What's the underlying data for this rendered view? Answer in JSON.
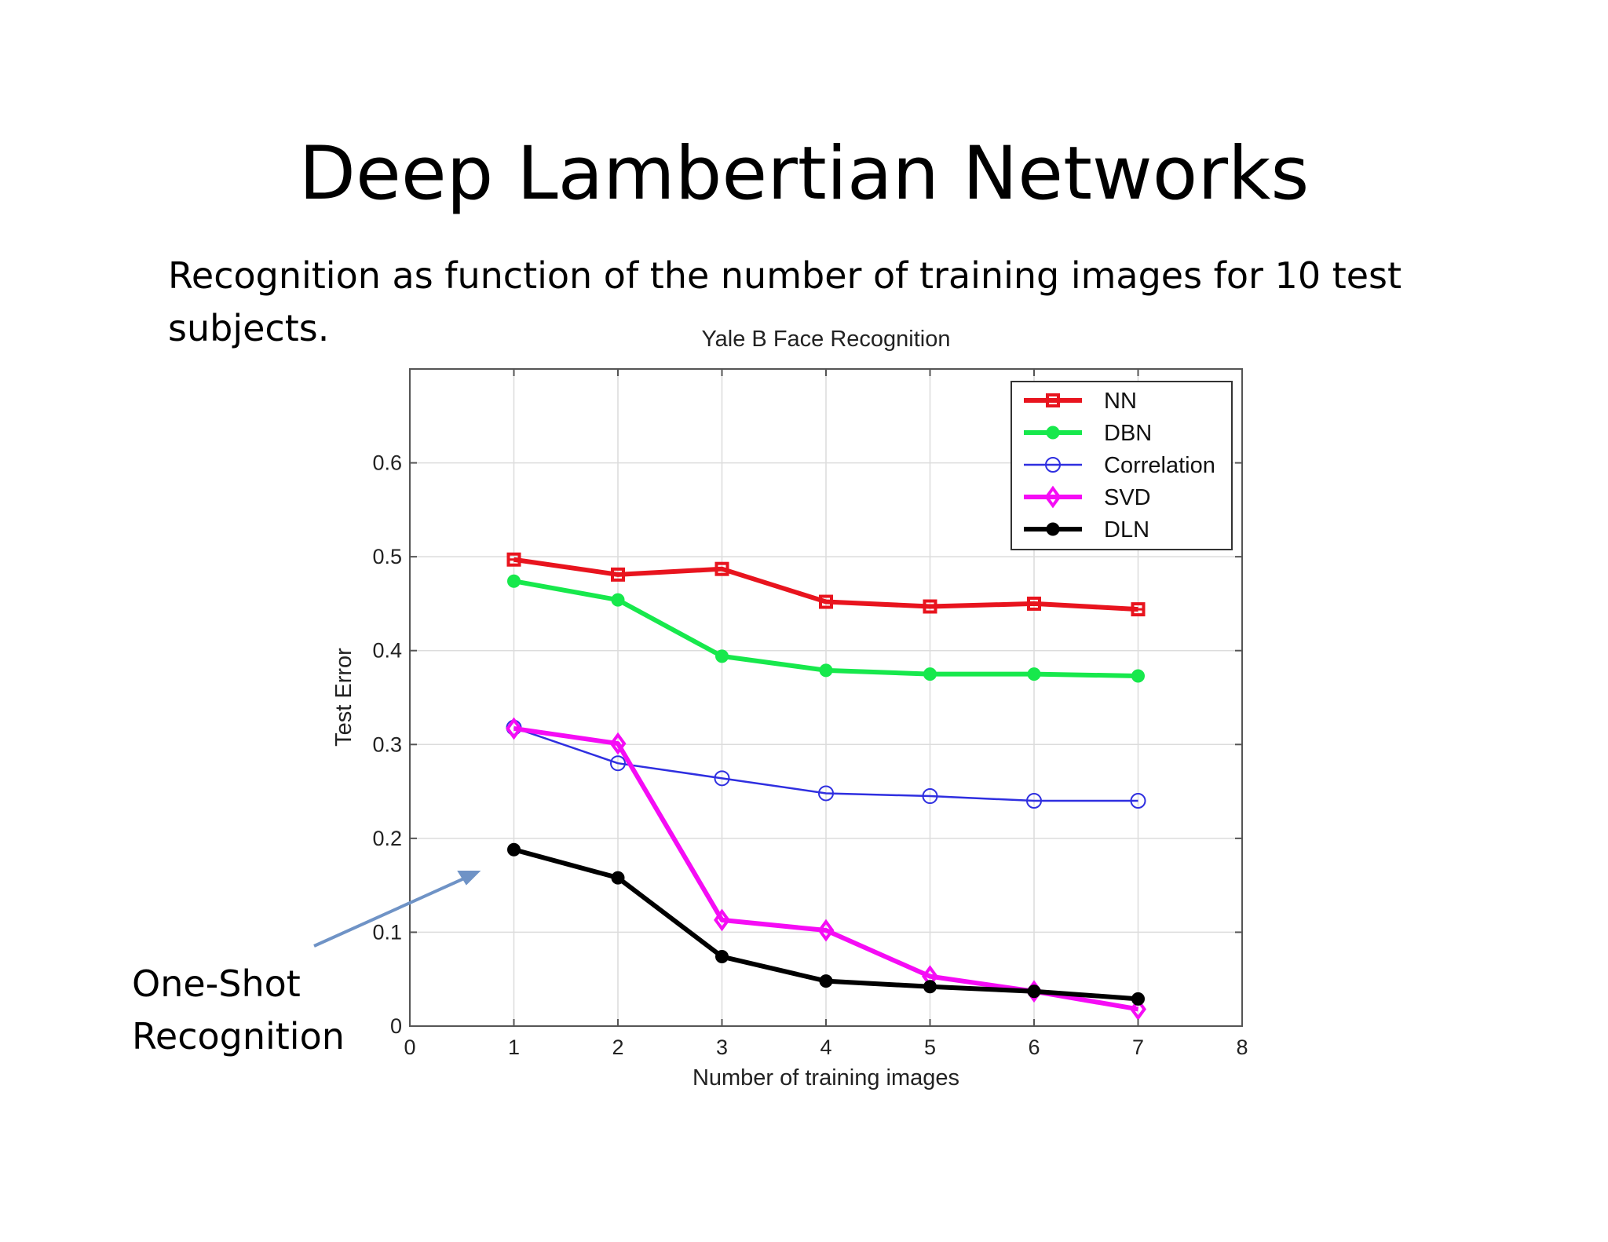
{
  "slide": {
    "title": "Deep Lambertian Networks",
    "subtitle": "Recognition as function of the number of training images for 10 test subjects.",
    "annotation_line1": "One-Shot",
    "annotation_line2": "Recognition",
    "arrow_color": "#6f93c6"
  },
  "chart_data": {
    "type": "line",
    "title": "Yale B Face Recognition",
    "xlabel": "Number of training images",
    "ylabel": "Test Error",
    "xlim": [
      0,
      8
    ],
    "ylim": [
      0,
      0.7
    ],
    "xticks": [
      0,
      1,
      2,
      3,
      4,
      5,
      6,
      7,
      8
    ],
    "yticks": [
      0,
      0.1,
      0.2,
      0.3,
      0.4,
      0.5,
      0.6
    ],
    "ytick_labels": [
      "0",
      "0.1",
      "0.2",
      "0.3",
      "0.4",
      "0.5",
      "0.6"
    ],
    "grid": true,
    "legend_position": "top-right",
    "x": [
      1,
      2,
      3,
      4,
      5,
      6,
      7
    ],
    "series": [
      {
        "name": "NN",
        "color": "#e8141e",
        "marker": "square",
        "values": [
          0.497,
          0.481,
          0.487,
          0.452,
          0.447,
          0.45,
          0.444
        ]
      },
      {
        "name": "DBN",
        "color": "#17e84c",
        "marker": "filled-circle",
        "values": [
          0.474,
          0.454,
          0.394,
          0.379,
          0.375,
          0.375,
          0.373
        ]
      },
      {
        "name": "Correlation",
        "color": "#2f2fe0",
        "marker": "open-circle",
        "values": [
          0.318,
          0.28,
          0.264,
          0.248,
          0.245,
          0.24,
          0.24
        ]
      },
      {
        "name": "SVD",
        "color": "#f50cf5",
        "marker": "diamond",
        "values": [
          0.317,
          0.301,
          0.113,
          0.102,
          0.053,
          0.037,
          0.018
        ]
      },
      {
        "name": "DLN",
        "color": "#000000",
        "marker": "filled-circle",
        "values": [
          0.188,
          0.158,
          0.074,
          0.048,
          0.042,
          0.037,
          0.029
        ]
      }
    ]
  }
}
